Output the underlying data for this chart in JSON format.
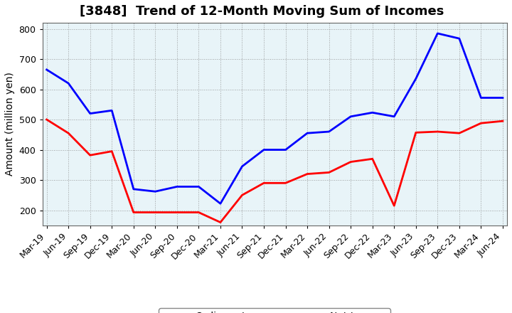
{
  "title": "[3848]  Trend of 12-Month Moving Sum of Incomes",
  "ylabel": "Amount (million yen)",
  "ylim": [
    150,
    820
  ],
  "yticks": [
    200,
    300,
    400,
    500,
    600,
    700,
    800
  ],
  "x_labels": [
    "Mar-19",
    "Jun-19",
    "Sep-19",
    "Dec-19",
    "Mar-20",
    "Jun-20",
    "Sep-20",
    "Dec-20",
    "Mar-21",
    "Jun-21",
    "Sep-21",
    "Dec-21",
    "Mar-22",
    "Jun-22",
    "Sep-22",
    "Dec-22",
    "Mar-23",
    "Jun-23",
    "Sep-23",
    "Dec-23",
    "Mar-24",
    "Jun-24"
  ],
  "ordinary_income": [
    665,
    620,
    520,
    530,
    270,
    262,
    278,
    278,
    222,
    345,
    400,
    400,
    455,
    460,
    510,
    523,
    510,
    635,
    785,
    768,
    572,
    572
  ],
  "net_income": [
    500,
    455,
    382,
    395,
    193,
    193,
    193,
    193,
    160,
    250,
    290,
    290,
    320,
    325,
    360,
    370,
    215,
    457,
    460,
    455,
    488,
    495
  ],
  "ordinary_color": "#0000ff",
  "net_color": "#ff0000",
  "line_width": 2.0,
  "title_fontsize": 13,
  "label_fontsize": 10,
  "tick_fontsize": 9,
  "legend_fontsize": 10,
  "bg_color": "#ffffff",
  "plot_bg_color": "#e8f4f8",
  "grid_color": "#888888",
  "grid_linestyle": "dotted"
}
